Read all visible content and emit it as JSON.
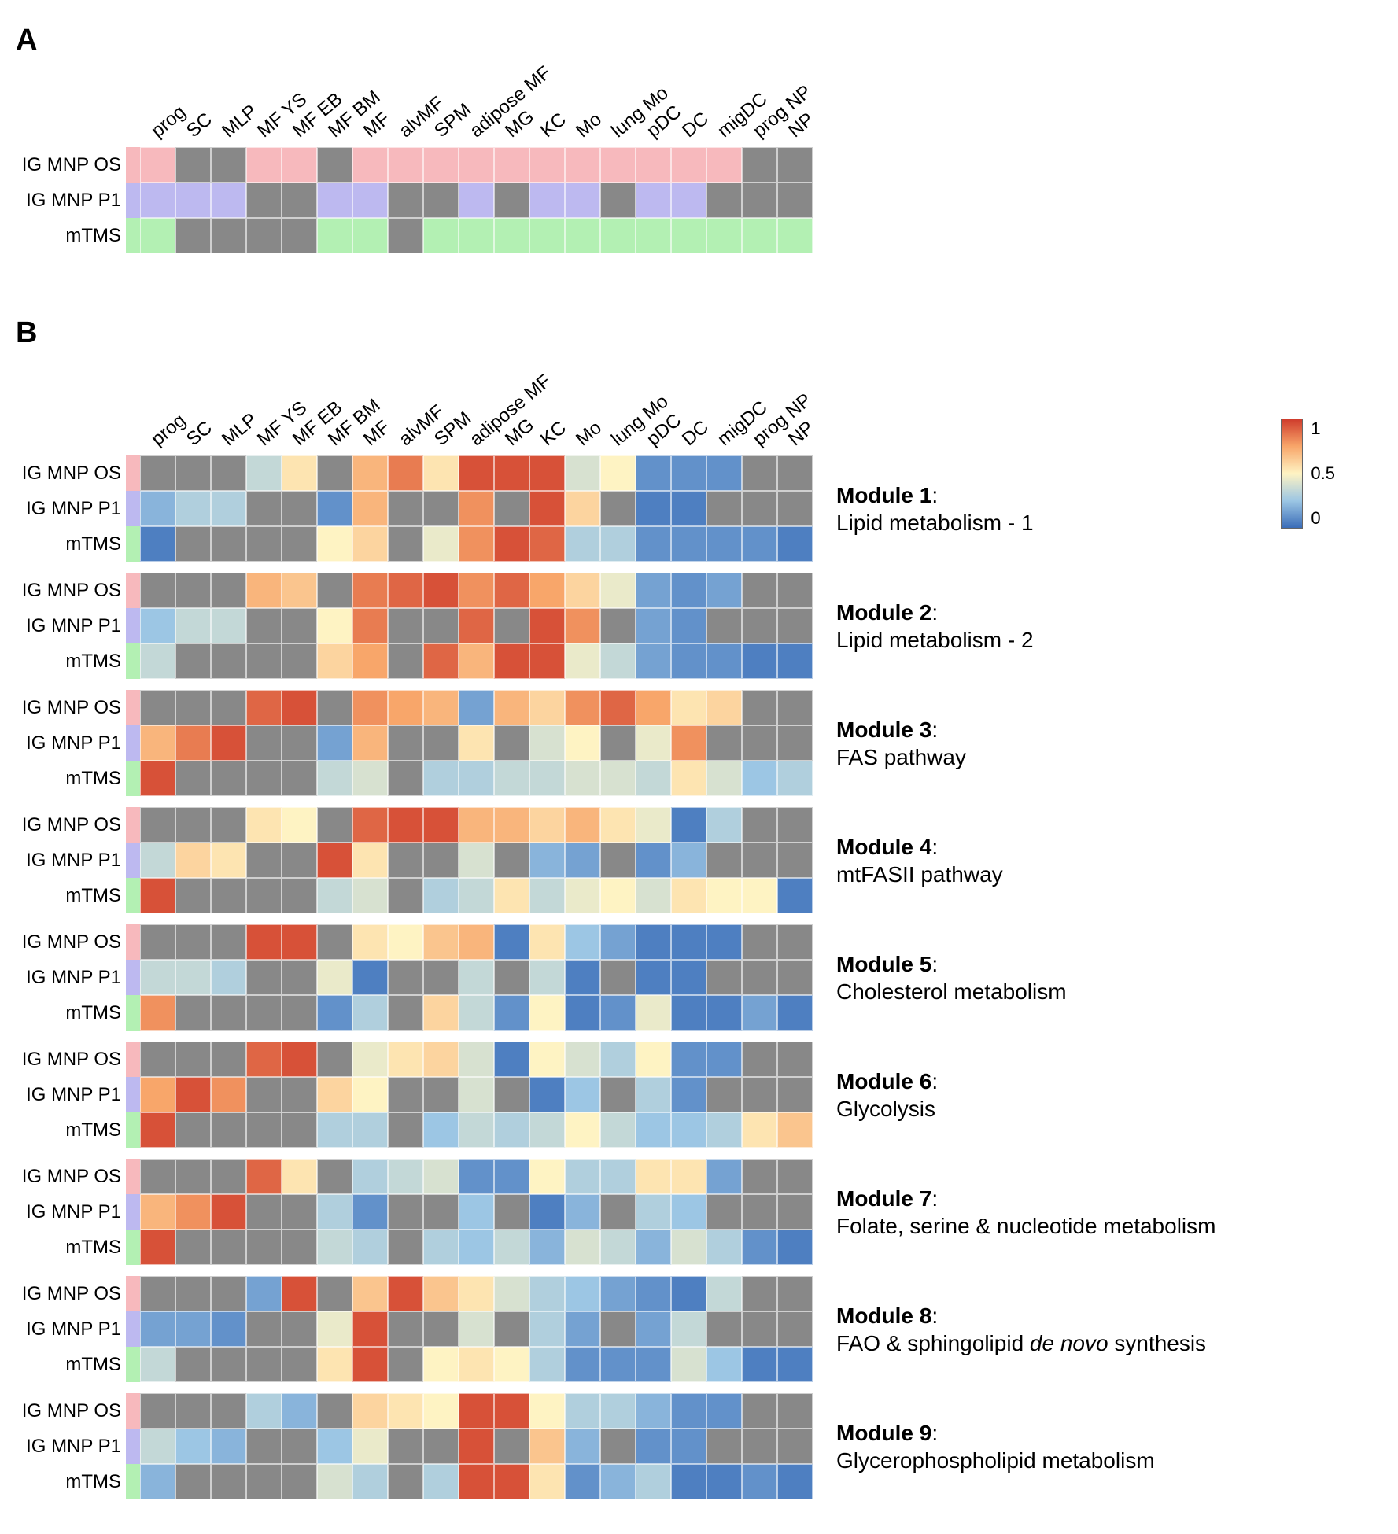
{
  "columns": [
    "prog",
    "SC",
    "MLP",
    "MF YS",
    "MF EB",
    "MF BM",
    "MF",
    "alvMF",
    "SPM",
    "adipose MF",
    "MG",
    "KC",
    "Mo",
    "lung Mo",
    "pDC",
    "DC",
    "migDC",
    "prog NP",
    "NP"
  ],
  "row_labels": [
    "IG MNP OS",
    "IG MNP P1",
    "mTMS"
  ],
  "row_tag_colors": [
    "#f7b9bd",
    "#bdb9f0",
    "#b3f0b3"
  ],
  "na_color": "#888888",
  "panel_A": {
    "row_colors": [
      "#f7b9bd",
      "#bdb9f0",
      "#b3f0b3"
    ],
    "grid": [
      [
        1,
        0,
        0,
        1,
        1,
        0,
        1,
        1,
        1,
        1,
        1,
        1,
        1,
        1,
        1,
        1,
        1,
        0,
        0
      ],
      [
        1,
        1,
        1,
        0,
        0,
        1,
        1,
        0,
        0,
        1,
        0,
        1,
        1,
        0,
        1,
        1,
        0,
        0,
        0
      ],
      [
        1,
        0,
        0,
        0,
        0,
        1,
        1,
        0,
        1,
        1,
        1,
        1,
        1,
        1,
        1,
        1,
        1,
        1,
        1
      ]
    ]
  },
  "colormap": {
    "stops": [
      {
        "v": 0.0,
        "c": "#3b6db8"
      },
      {
        "v": 0.25,
        "c": "#9cc6e4"
      },
      {
        "v": 0.5,
        "c": "#fef3c3"
      },
      {
        "v": 0.75,
        "c": "#f8a66a"
      },
      {
        "v": 1.0,
        "c": "#cf3c2c"
      }
    ]
  },
  "legend": {
    "ticks": [
      "1",
      "0.5",
      "0"
    ]
  },
  "modules": [
    {
      "name": "Module 1",
      "desc": "Lipid metabolism - 1",
      "data": [
        [
          null,
          null,
          null,
          0.35,
          0.55,
          null,
          0.7,
          0.85,
          0.55,
          0.95,
          0.95,
          0.95,
          0.4,
          0.5,
          0.1,
          0.1,
          0.1,
          null,
          null
        ],
        [
          0.2,
          0.3,
          0.3,
          null,
          null,
          0.1,
          0.7,
          null,
          null,
          0.8,
          null,
          0.95,
          0.6,
          null,
          0.05,
          0.05,
          null,
          null,
          null
        ],
        [
          0.05,
          null,
          null,
          null,
          null,
          0.5,
          0.6,
          null,
          0.45,
          0.8,
          0.95,
          0.9,
          0.3,
          0.3,
          0.1,
          0.1,
          0.1,
          0.1,
          0.05
        ]
      ]
    },
    {
      "name": "Module 2",
      "desc": "Lipid metabolism - 2",
      "data": [
        [
          null,
          null,
          null,
          0.7,
          0.65,
          null,
          0.85,
          0.9,
          0.95,
          0.8,
          0.9,
          0.75,
          0.6,
          0.45,
          0.15,
          0.1,
          0.15,
          null,
          null
        ],
        [
          0.25,
          0.35,
          0.35,
          null,
          null,
          0.5,
          0.85,
          null,
          null,
          0.9,
          null,
          0.95,
          0.8,
          null,
          0.15,
          0.1,
          null,
          null,
          null
        ],
        [
          0.35,
          null,
          null,
          null,
          null,
          0.6,
          0.75,
          null,
          0.9,
          0.7,
          0.95,
          0.95,
          0.45,
          0.35,
          0.15,
          0.1,
          0.1,
          0.05,
          0.05
        ]
      ]
    },
    {
      "name": "Module 3",
      "desc": "FAS pathway",
      "data": [
        [
          null,
          null,
          null,
          0.9,
          0.95,
          null,
          0.8,
          0.75,
          0.7,
          0.15,
          0.7,
          0.6,
          0.8,
          0.9,
          0.75,
          0.55,
          0.6,
          null,
          null
        ],
        [
          0.7,
          0.85,
          0.95,
          null,
          null,
          0.15,
          0.7,
          null,
          null,
          0.55,
          null,
          0.4,
          0.5,
          null,
          0.45,
          0.8,
          null,
          null,
          null
        ],
        [
          0.95,
          null,
          null,
          null,
          null,
          0.35,
          0.4,
          null,
          0.3,
          0.3,
          0.35,
          0.35,
          0.4,
          0.4,
          0.35,
          0.55,
          0.4,
          0.25,
          0.3
        ]
      ]
    },
    {
      "name": "Module 4",
      "desc": "mtFASII pathway",
      "data": [
        [
          null,
          null,
          null,
          0.55,
          0.5,
          null,
          0.9,
          0.95,
          0.95,
          0.7,
          0.7,
          0.6,
          0.7,
          0.55,
          0.45,
          0.05,
          0.3,
          null,
          null
        ],
        [
          0.35,
          0.6,
          0.55,
          null,
          null,
          0.95,
          0.55,
          null,
          null,
          0.4,
          null,
          0.2,
          0.15,
          null,
          0.1,
          0.2,
          null,
          null,
          null
        ],
        [
          0.95,
          null,
          null,
          null,
          null,
          0.35,
          0.4,
          null,
          0.3,
          0.35,
          0.55,
          0.35,
          0.45,
          0.5,
          0.4,
          0.55,
          0.5,
          0.5,
          0.05
        ]
      ]
    },
    {
      "name": "Module 5",
      "desc": "Cholesterol metabolism",
      "data": [
        [
          null,
          null,
          null,
          0.95,
          0.95,
          null,
          0.55,
          0.5,
          0.65,
          0.7,
          0.05,
          0.55,
          0.25,
          0.15,
          0.05,
          0.05,
          0.05,
          null,
          null
        ],
        [
          0.35,
          0.35,
          0.3,
          null,
          null,
          0.45,
          0.05,
          null,
          null,
          0.35,
          null,
          0.35,
          0.05,
          null,
          0.05,
          0.05,
          null,
          null,
          null
        ],
        [
          0.8,
          null,
          null,
          null,
          null,
          0.1,
          0.3,
          null,
          0.6,
          0.35,
          0.1,
          0.5,
          0.05,
          0.1,
          0.45,
          0.05,
          0.05,
          0.15,
          0.05
        ]
      ]
    },
    {
      "name": "Module 6",
      "desc": "Glycolysis",
      "data": [
        [
          null,
          null,
          null,
          0.9,
          0.95,
          null,
          0.45,
          0.55,
          0.6,
          0.4,
          0.05,
          0.5,
          0.4,
          0.3,
          0.5,
          0.1,
          0.1,
          null,
          null
        ],
        [
          0.75,
          0.95,
          0.8,
          null,
          null,
          0.6,
          0.5,
          null,
          null,
          0.4,
          null,
          0.05,
          0.25,
          null,
          0.3,
          0.1,
          null,
          null,
          null
        ],
        [
          0.95,
          null,
          null,
          null,
          null,
          0.3,
          0.3,
          null,
          0.25,
          0.35,
          0.3,
          0.35,
          0.5,
          0.35,
          0.25,
          0.25,
          0.3,
          0.55,
          0.65
        ]
      ]
    },
    {
      "name": "Module 7",
      "desc": "Folate, serine & nucleotide metabolism",
      "data": [
        [
          null,
          null,
          null,
          0.9,
          0.55,
          null,
          0.3,
          0.35,
          0.4,
          0.1,
          0.1,
          0.5,
          0.3,
          0.3,
          0.55,
          0.55,
          0.15,
          null,
          null
        ],
        [
          0.7,
          0.8,
          0.95,
          null,
          null,
          0.3,
          0.1,
          null,
          null,
          0.25,
          null,
          0.05,
          0.2,
          null,
          0.3,
          0.25,
          null,
          null,
          null
        ],
        [
          0.95,
          null,
          null,
          null,
          null,
          0.35,
          0.3,
          null,
          0.3,
          0.25,
          0.35,
          0.2,
          0.4,
          0.35,
          0.2,
          0.4,
          0.3,
          0.1,
          0.05
        ]
      ]
    },
    {
      "name": "Module 8",
      "desc": "FAO & sphingolipid <span class=\"italic\">de novo</span> synthesis",
      "data": [
        [
          null,
          null,
          null,
          0.15,
          0.95,
          null,
          0.65,
          0.95,
          0.65,
          0.55,
          0.4,
          0.3,
          0.25,
          0.15,
          0.1,
          0.05,
          0.35,
          null,
          null
        ],
        [
          0.15,
          0.15,
          0.1,
          null,
          null,
          0.45,
          0.95,
          null,
          null,
          0.4,
          null,
          0.3,
          0.15,
          null,
          0.15,
          0.35,
          null,
          null,
          null
        ],
        [
          0.35,
          null,
          null,
          null,
          null,
          0.55,
          0.95,
          null,
          0.5,
          0.55,
          0.5,
          0.3,
          0.1,
          0.1,
          0.1,
          0.4,
          0.25,
          0.05,
          0.05
        ]
      ]
    },
    {
      "name": "Module 9",
      "desc": "Glycerophospholipid metabolism",
      "data": [
        [
          null,
          null,
          null,
          0.3,
          0.2,
          null,
          0.6,
          0.55,
          0.5,
          0.95,
          0.95,
          0.5,
          0.3,
          0.3,
          0.2,
          0.1,
          0.1,
          null,
          null
        ],
        [
          0.35,
          0.25,
          0.2,
          null,
          null,
          0.25,
          0.45,
          null,
          null,
          0.95,
          null,
          0.65,
          0.2,
          null,
          0.1,
          0.1,
          null,
          null,
          null
        ],
        [
          0.2,
          null,
          null,
          null,
          null,
          0.4,
          0.3,
          null,
          0.3,
          0.95,
          0.95,
          0.55,
          0.1,
          0.2,
          0.3,
          0.05,
          0.05,
          0.1,
          0.05
        ]
      ]
    }
  ]
}
